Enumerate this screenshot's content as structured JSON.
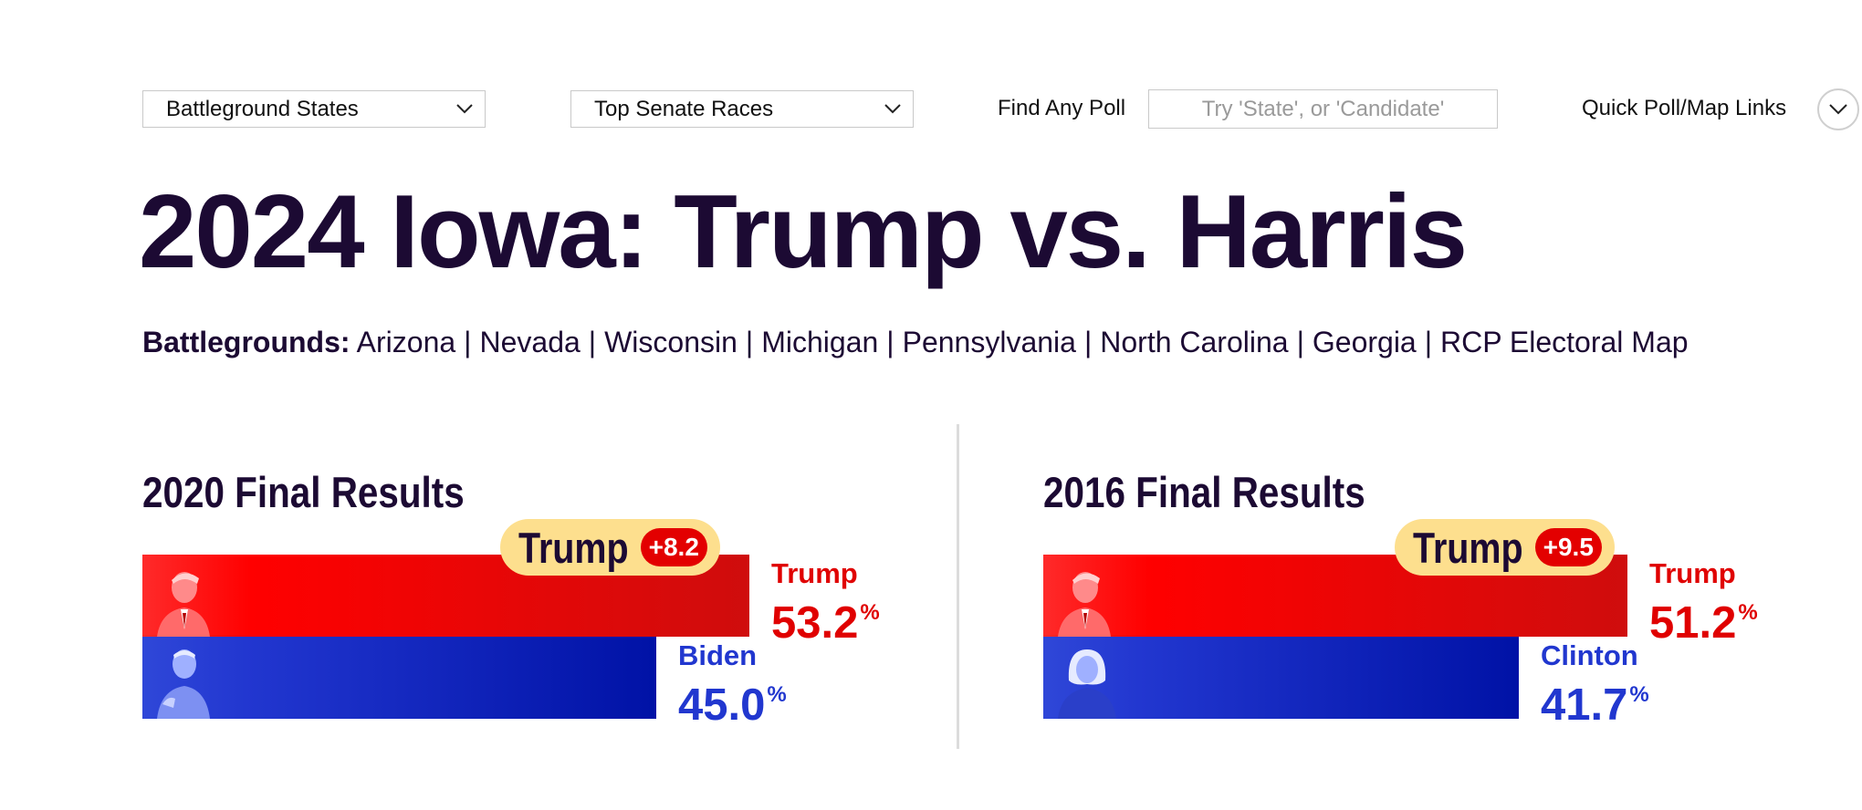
{
  "toolbar": {
    "battleground_select": "Battleground States",
    "senate_select": "Top Senate Races",
    "find_label": "Find Any Poll",
    "search_placeholder": "Try 'State', or 'Candidate'",
    "quick_links_label": "Quick Poll/Map Links"
  },
  "page": {
    "title": "2024 Iowa: Trump vs. Harris"
  },
  "battlegrounds": {
    "label": "Battlegrounds:",
    "links": [
      "Arizona",
      "Nevada",
      "Wisconsin",
      "Michigan",
      "Pennsylvania",
      "North Carolina",
      "Georgia",
      "RCP Electoral Map"
    ]
  },
  "colors": {
    "republican": "#e00000",
    "democrat": "#2137cf",
    "title": "#1c0a33",
    "margin_pill": "#fddf8e"
  },
  "results": [
    {
      "heading": "2020 Final Results",
      "leader": "Trump",
      "margin": "+8.2",
      "rep": {
        "name": "Trump",
        "pct": "53.2",
        "value": 53.2
      },
      "dem": {
        "name": "Biden",
        "pct": "45.0",
        "value": 45.0
      },
      "pct_symbol": "%"
    },
    {
      "heading": "2016 Final Results",
      "leader": "Trump",
      "margin": "+9.5",
      "rep": {
        "name": "Trump",
        "pct": "51.2",
        "value": 51.2
      },
      "dem": {
        "name": "Clinton",
        "pct": "41.7",
        "value": 41.7
      },
      "pct_symbol": "%"
    }
  ]
}
